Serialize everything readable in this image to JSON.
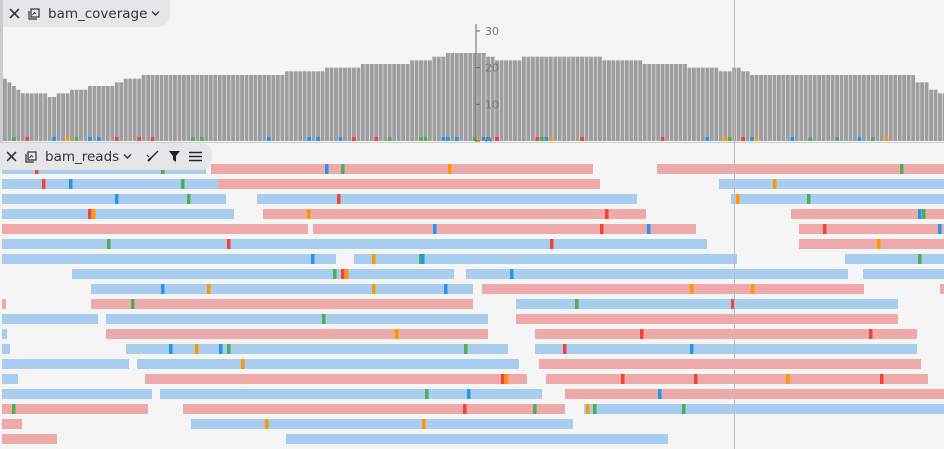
{
  "colors": {
    "coverage_bar": "#9e9e9e",
    "forward_read": "#a8cdef",
    "reverse_read": "#eeaaaa",
    "mismatch_A": "#4caf50",
    "mismatch_C": "#2196f3",
    "mismatch_G": "#ff9800",
    "mismatch_T": "#f44336",
    "background": "#f5f5f5"
  },
  "coverage_track": {
    "title": "bam_coverage",
    "close_icon": "close-icon",
    "track_icon": "track-settings-icon",
    "dropdown_icon": "chevron-down-icon",
    "y_ticks": [
      "30",
      "20",
      "10",
      "0"
    ],
    "y_range": [
      0,
      30
    ],
    "depths": [
      17,
      16,
      15,
      14,
      13,
      13,
      13,
      13,
      13,
      13,
      12,
      12,
      13,
      13,
      13,
      14,
      14,
      14,
      14,
      15,
      15,
      15,
      15,
      15,
      15,
      16,
      16,
      17,
      17,
      17,
      17,
      18,
      18,
      18,
      18,
      18,
      18,
      18,
      18,
      18,
      18,
      18,
      18,
      18,
      18,
      18,
      18,
      18,
      18,
      18,
      18,
      18,
      18,
      18,
      18,
      18,
      18,
      18,
      18,
      18,
      18,
      18,
      18,
      19,
      19,
      19,
      19,
      19,
      19,
      19,
      19,
      19,
      20,
      20,
      20,
      20,
      20,
      20,
      20,
      20,
      21,
      21,
      21,
      21,
      21,
      21,
      21,
      21,
      21,
      21,
      21,
      22,
      22,
      22,
      22,
      22,
      23,
      23,
      23,
      24,
      24,
      24,
      24,
      24,
      24,
      24,
      24,
      24,
      23,
      23,
      22,
      22,
      22,
      22,
      22,
      22,
      23,
      23,
      23,
      23,
      23,
      23,
      23,
      23,
      23,
      23,
      23,
      23,
      23,
      23,
      23,
      23,
      23,
      23,
      22,
      22,
      22,
      22,
      22,
      22,
      22,
      22,
      22,
      21,
      21,
      21,
      21,
      21,
      21,
      21,
      21,
      21,
      21,
      20,
      20,
      20,
      20,
      20,
      20,
      20,
      19,
      19,
      19,
      20,
      20,
      19,
      19,
      18,
      18,
      18,
      18,
      18,
      18,
      18,
      18,
      18,
      18,
      18,
      18,
      18,
      18,
      18,
      18,
      18,
      18,
      18,
      18,
      18,
      18,
      18,
      18,
      18,
      18,
      18,
      18,
      18,
      18,
      18,
      18,
      18,
      18,
      18,
      18,
      18,
      16,
      16,
      16,
      14,
      14,
      13,
      13
    ]
  },
  "reads_track": {
    "title": "bam_reads",
    "close_icon": "close-icon",
    "track_icon": "track-settings-icon",
    "dropdown_icon": "chevron-down-icon",
    "tools": [
      "brush-icon",
      "filter-icon",
      "menu-icon"
    ]
  }
}
